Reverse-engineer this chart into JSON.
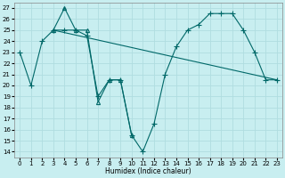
{
  "xlabel": "Humidex (Indice chaleur)",
  "xlim": [
    -0.5,
    23.5
  ],
  "ylim": [
    13.5,
    27.5
  ],
  "yticks": [
    14,
    15,
    16,
    17,
    18,
    19,
    20,
    21,
    22,
    23,
    24,
    25,
    26,
    27
  ],
  "xticks": [
    0,
    1,
    2,
    3,
    4,
    5,
    6,
    7,
    8,
    9,
    10,
    11,
    12,
    13,
    14,
    15,
    16,
    17,
    18,
    19,
    20,
    21,
    22,
    23
  ],
  "bg_color": "#c8eef0",
  "line_color": "#006868",
  "grid_color": "#b0dde0",
  "lines": [
    {
      "x": [
        0,
        1,
        2,
        3,
        4,
        5,
        6,
        7,
        8,
        9,
        10,
        11,
        12,
        13,
        14,
        15,
        16,
        17,
        18,
        19,
        20,
        21,
        22,
        23
      ],
      "y": [
        23,
        20,
        24,
        25,
        25,
        25,
        24.5,
        19,
        20.5,
        20.5,
        15.5,
        14,
        16.5,
        21,
        23.5,
        25,
        25.5,
        26.5,
        26.5,
        26.5,
        25,
        23,
        20.5,
        20.5
      ],
      "marker": "+",
      "markersize": 4,
      "lw": 0.8
    },
    {
      "x": [
        0,
        1,
        2,
        3,
        4,
        5,
        6,
        15,
        16,
        17,
        18,
        19,
        20,
        21,
        22,
        23
      ],
      "y": [
        23,
        20,
        24,
        25,
        25,
        25,
        24.5,
        25,
        25.5,
        26.5,
        26.5,
        26.5,
        25,
        23,
        20.5,
        20.5
      ],
      "marker": "+",
      "markersize": 3,
      "lw": 0.8
    },
    {
      "x": [
        3,
        4,
        5,
        6,
        7,
        8,
        9,
        10
      ],
      "y": [
        25,
        27,
        25,
        25,
        18.5,
        20.5,
        20.5,
        15.5
      ],
      "marker": "^",
      "markersize": 4,
      "lw": 0.8
    }
  ]
}
